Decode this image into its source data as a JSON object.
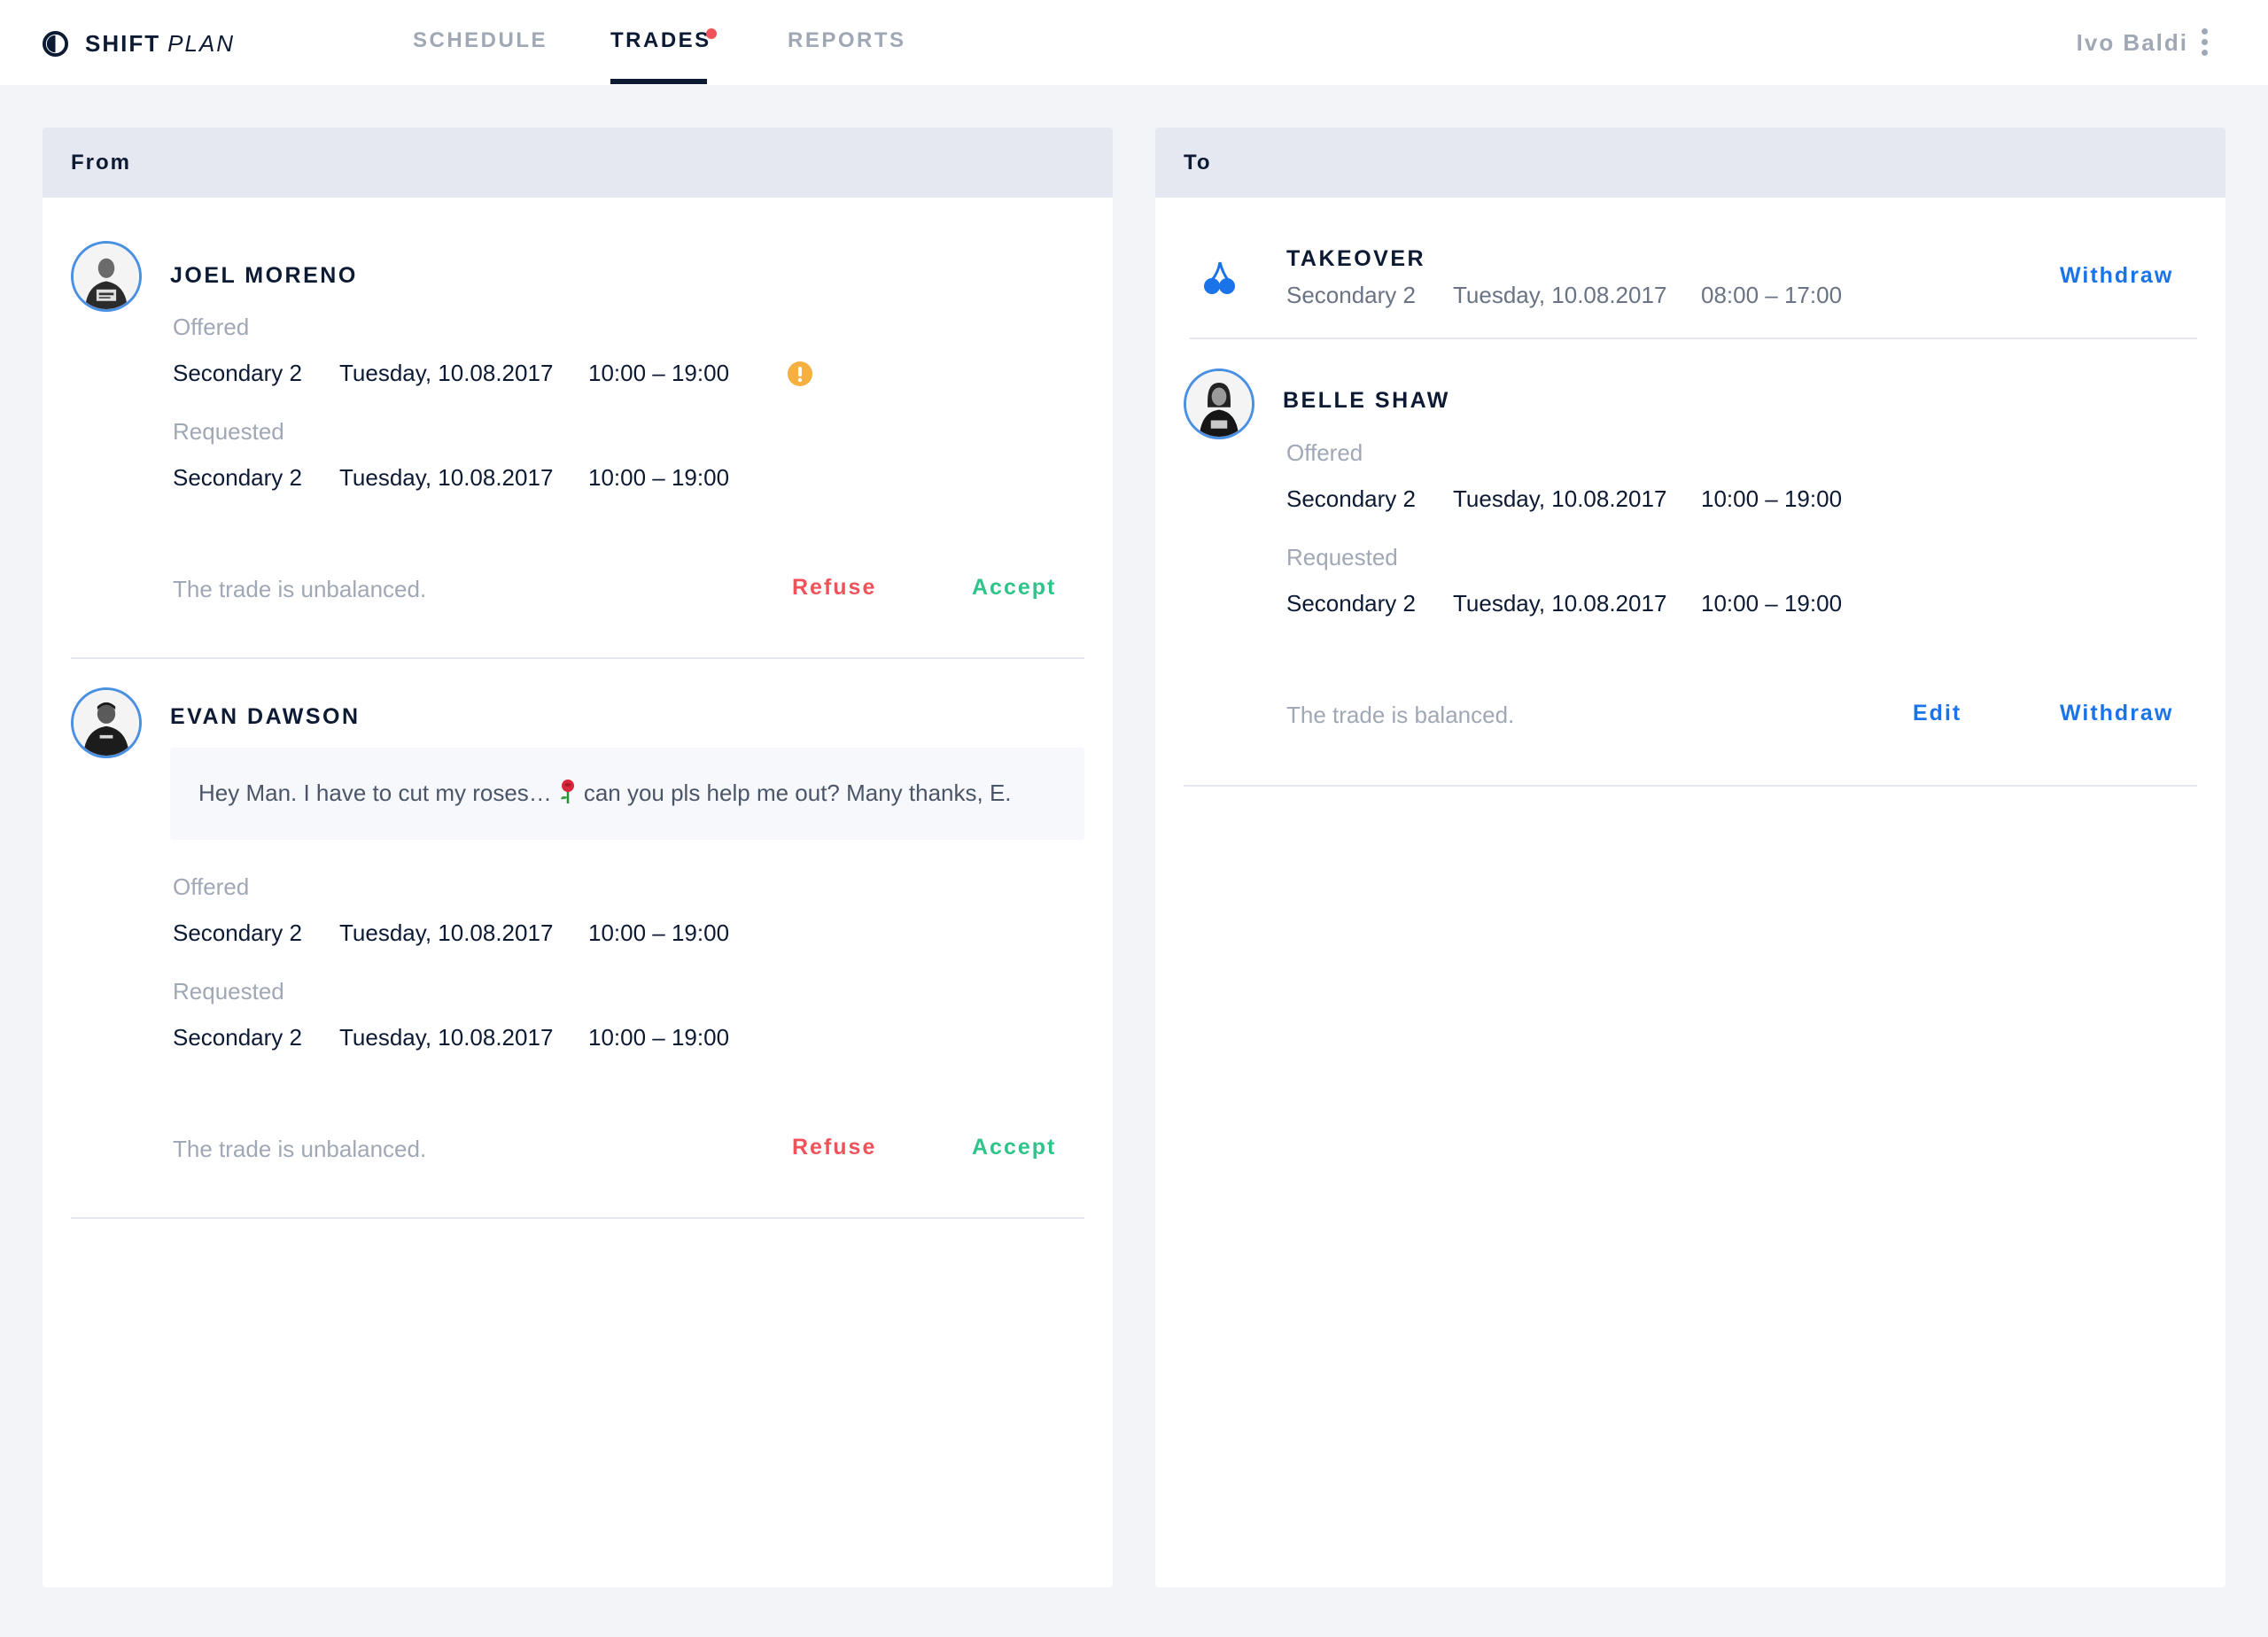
{
  "app": {
    "logo_bold": "SHIFT",
    "logo_light": "PLAN"
  },
  "nav": {
    "tabs": [
      {
        "label": "SCHEDULE",
        "active": false
      },
      {
        "label": "TRADES",
        "active": true,
        "has_notification": true
      },
      {
        "label": "REPORTS",
        "active": false
      }
    ],
    "user_name": "Ivo Baldi"
  },
  "colors": {
    "accent_blue": "#1a73e8",
    "refuse_red": "#f0525a",
    "accept_green": "#2ec48a",
    "warning_orange": "#f5b041",
    "notification_red": "#f0525a"
  },
  "from_panel": {
    "title": "From",
    "trades": [
      {
        "name": "JOEL MORENO",
        "offered_label": "Offered",
        "offered": {
          "location": "Secondary 2",
          "date": "Tuesday, 10.08.2017",
          "time": "10:00 – 19:00"
        },
        "requested_label": "Requested",
        "requested": {
          "location": "Secondary 2",
          "date": "Tuesday, 10.08.2017",
          "time": "10:00 – 19:00"
        },
        "status": "The trade is unbalanced.",
        "refuse_label": "Refuse",
        "accept_label": "Accept",
        "warning_icon": "exclamation-circle-icon"
      },
      {
        "name": "EVAN DAWSON",
        "message_before": "Hey Man. I have to cut my roses…",
        "message_after": "can you pls help me out? Many thanks, E.",
        "offered_label": "Offered",
        "offered": {
          "location": "Secondary 2",
          "date": "Tuesday, 10.08.2017",
          "time": "10:00 – 19:00"
        },
        "requested_label": "Requested",
        "requested": {
          "location": "Secondary 2",
          "date": "Tuesday, 10.08.2017",
          "time": "10:00 – 19:00"
        },
        "status": "The trade is unbalanced.",
        "refuse_label": "Refuse",
        "accept_label": "Accept"
      }
    ]
  },
  "to_panel": {
    "title": "To",
    "takeover": {
      "title": "TAKEOVER",
      "location": "Secondary 2",
      "date": "Tuesday, 10.08.2017",
      "time": "08:00 – 17:00",
      "withdraw_label": "Withdraw",
      "icon": "cherries-icon"
    },
    "trade": {
      "name": "BELLE SHAW",
      "offered_label": "Offered",
      "offered": {
        "location": "Secondary 2",
        "date": "Tuesday, 10.08.2017",
        "time": "10:00 – 19:00"
      },
      "requested_label": "Requested",
      "requested": {
        "location": "Secondary 2",
        "date": "Tuesday, 10.08.2017",
        "time": "10:00 – 19:00"
      },
      "status": "The trade is balanced.",
      "edit_label": "Edit",
      "withdraw_label": "Withdraw"
    }
  }
}
